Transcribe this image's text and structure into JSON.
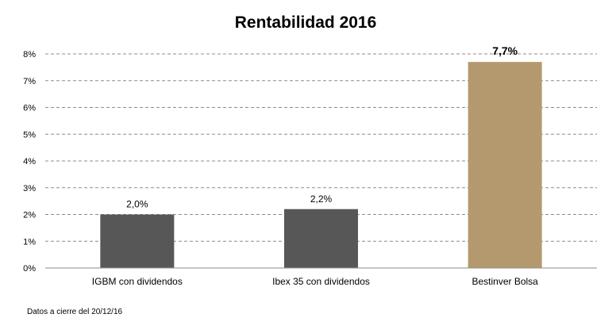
{
  "chart_data": {
    "type": "bar",
    "title": "Rentabilidad 2016",
    "categories": [
      "IGBM con dividendos",
      "Ibex 35 con dividendos",
      "Bestinver Bolsa"
    ],
    "values": [
      2.0,
      2.2,
      7.7
    ],
    "value_labels": [
      "2,0%",
      "2,2%",
      "7,7%"
    ],
    "bar_colors": [
      "#575757",
      "#575757",
      "#b5996e"
    ],
    "ylim": [
      0,
      8
    ],
    "yticks": [
      0,
      1,
      2,
      3,
      4,
      5,
      6,
      7,
      8
    ],
    "ytick_labels": [
      "0%",
      "1%",
      "2%",
      "3%",
      "4%",
      "5%",
      "6%",
      "7%",
      "8%"
    ],
    "grid": true,
    "xlabel": "",
    "ylabel": ""
  },
  "footnote": "Datos a cierre del 20/12/16"
}
